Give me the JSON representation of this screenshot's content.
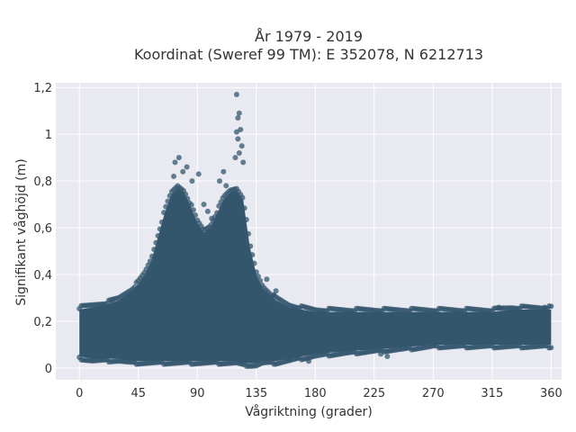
{
  "chart_data": {
    "type": "scatter",
    "title": "År 1979 - 2019",
    "subtitle": "Koordinat (Sweref 99 TM): E 352078, N 6212713",
    "xlabel": "Vågriktning (grader)",
    "ylabel": "Signifikant våghöjd (m)",
    "xlim": [
      -18,
      368
    ],
    "ylim": [
      -0.05,
      1.22
    ],
    "xticks": [
      0,
      45,
      90,
      135,
      180,
      225,
      270,
      315,
      360
    ],
    "xtick_labels": [
      "0",
      "45",
      "90",
      "135",
      "180",
      "225",
      "270",
      "315",
      "360"
    ],
    "yticks": [
      0,
      0.2,
      0.4,
      0.6,
      0.8,
      1.0,
      1.2
    ],
    "ytick_labels": [
      "0",
      "0,2",
      "0,4",
      "0,6",
      "0,8",
      "1",
      "1,2"
    ],
    "grid": true,
    "colors": {
      "marker": "#34566d",
      "plot_bg": "#e8e9f1",
      "grid": "#ffffff"
    },
    "envelope": {
      "x": [
        0,
        10,
        20,
        30,
        40,
        45,
        50,
        55,
        60,
        65,
        70,
        75,
        80,
        85,
        90,
        95,
        100,
        105,
        110,
        115,
        120,
        125,
        130,
        135,
        140,
        150,
        160,
        170,
        180,
        200,
        225,
        250,
        270,
        300,
        315,
        330,
        345,
        360
      ],
      "upper": [
        0.25,
        0.26,
        0.27,
        0.29,
        0.33,
        0.36,
        0.4,
        0.46,
        0.56,
        0.66,
        0.74,
        0.77,
        0.75,
        0.69,
        0.62,
        0.58,
        0.6,
        0.66,
        0.72,
        0.75,
        0.76,
        0.72,
        0.52,
        0.4,
        0.34,
        0.29,
        0.26,
        0.25,
        0.24,
        0.24,
        0.24,
        0.24,
        0.24,
        0.24,
        0.24,
        0.25,
        0.25,
        0.25
      ],
      "lower": [
        0.05,
        0.04,
        0.04,
        0.04,
        0.03,
        0.03,
        0.03,
        0.03,
        0.03,
        0.03,
        0.03,
        0.03,
        0.03,
        0.03,
        0.03,
        0.03,
        0.03,
        0.03,
        0.03,
        0.03,
        0.03,
        0.02,
        0.02,
        0.02,
        0.03,
        0.03,
        0.04,
        0.05,
        0.06,
        0.07,
        0.08,
        0.09,
        0.1,
        0.1,
        0.1,
        0.1,
        0.1,
        0.1
      ]
    },
    "outliers": [
      {
        "x": 120,
        "y": 1.17
      },
      {
        "x": 122,
        "y": 1.09
      },
      {
        "x": 121,
        "y": 1.07
      },
      {
        "x": 123,
        "y": 1.02
      },
      {
        "x": 120,
        "y": 1.01
      },
      {
        "x": 121,
        "y": 0.98
      },
      {
        "x": 124,
        "y": 0.95
      },
      {
        "x": 122,
        "y": 0.92
      },
      {
        "x": 119,
        "y": 0.9
      },
      {
        "x": 125,
        "y": 0.88
      },
      {
        "x": 76,
        "y": 0.9
      },
      {
        "x": 73,
        "y": 0.88
      },
      {
        "x": 82,
        "y": 0.86
      },
      {
        "x": 79,
        "y": 0.84
      },
      {
        "x": 91,
        "y": 0.83
      },
      {
        "x": 86,
        "y": 0.8
      },
      {
        "x": 72,
        "y": 0.82
      },
      {
        "x": 110,
        "y": 0.84
      },
      {
        "x": 107,
        "y": 0.8
      },
      {
        "x": 112,
        "y": 0.78
      },
      {
        "x": 95,
        "y": 0.7
      },
      {
        "x": 98,
        "y": 0.67
      },
      {
        "x": 101,
        "y": 0.64
      },
      {
        "x": 143,
        "y": 0.38
      },
      {
        "x": 150,
        "y": 0.33
      },
      {
        "x": 148,
        "y": 0.31
      },
      {
        "x": 25,
        "y": 0.28
      },
      {
        "x": 160,
        "y": 0.04
      },
      {
        "x": 175,
        "y": 0.03
      },
      {
        "x": 230,
        "y": 0.06
      },
      {
        "x": 235,
        "y": 0.05
      },
      {
        "x": 320,
        "y": 0.26
      },
      {
        "x": 355,
        "y": 0.26
      }
    ]
  }
}
